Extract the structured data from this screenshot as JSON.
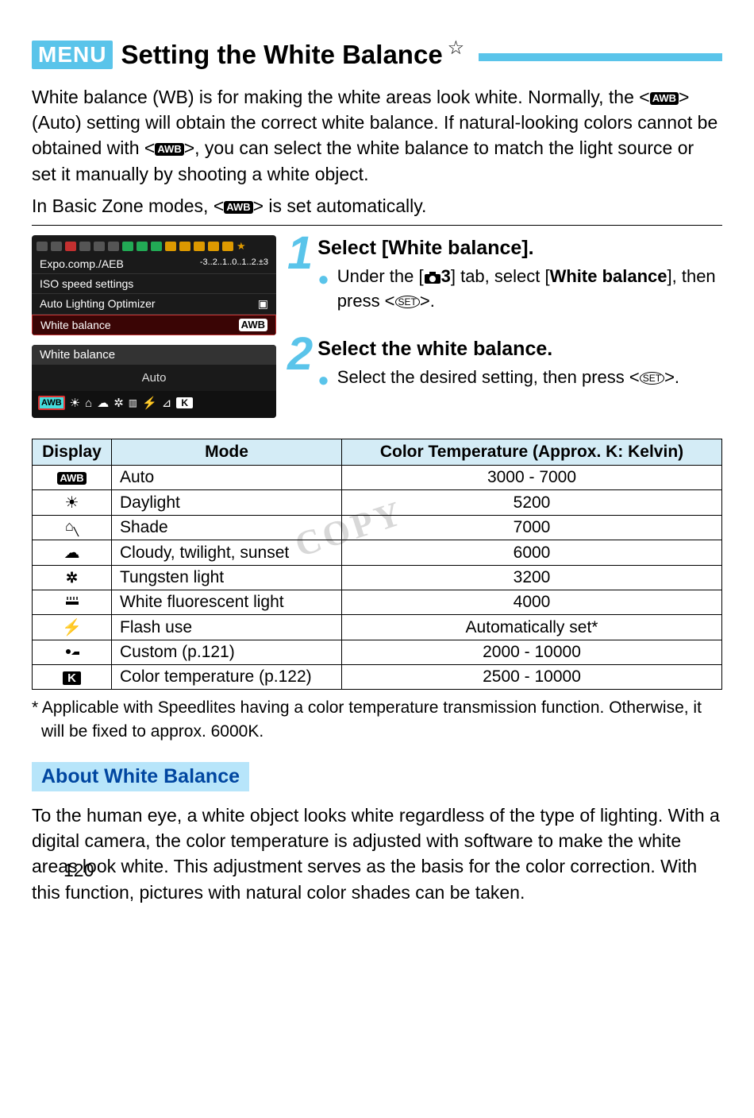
{
  "colors": {
    "accent_cyan": "#5ac4ea",
    "section_bg": "#b7e5fa",
    "section_text": "#0046a0",
    "table_header_bg": "#d4ecf6",
    "screen_bg": "#1a1a1a",
    "screen_highlight_border": "#c43030"
  },
  "header": {
    "menu_badge": "MENU",
    "title": "Setting the White Balance",
    "star": "☆"
  },
  "intro": {
    "p1_a": "White balance (WB) is for making the white areas look white. Normally, the <",
    "p1_b": "> (Auto) setting will obtain the correct white balance. If natural-looking colors cannot be obtained with <",
    "p1_c": ">, you can select the white balance to match the light source or set it manually by shooting a white object.",
    "p2_a": "In Basic Zone modes, <",
    "p2_b": "> is set automatically.",
    "awb_label": "AWB"
  },
  "screenshots": {
    "screen1": {
      "row1_label": "Expo.comp./AEB",
      "row1_value": "-3..2..1..0..1..2.±3",
      "row2": "ISO speed settings",
      "row3": "Auto Lighting Optimizer",
      "row4_label": "White balance",
      "row4_value": "AWB"
    },
    "screen2": {
      "title": "White balance",
      "value": "Auto",
      "selected": "AWB",
      "icons": [
        "☀",
        "⌂",
        "☁",
        "✲",
        "▥",
        "⚡",
        "⊿",
        "K"
      ]
    }
  },
  "steps": [
    {
      "num": "1",
      "title": "Select [White balance].",
      "sub_a": "Under the [",
      "sub_tab": "3",
      "sub_b": "] tab, select [",
      "sub_bold": "White balance",
      "sub_c": "], then press <",
      "sub_d": ">."
    },
    {
      "num": "2",
      "title": "Select the white balance.",
      "sub_a": "Select the desired setting, then press <",
      "sub_b": ">."
    }
  ],
  "table": {
    "headers": [
      "Display",
      "Mode",
      "Color Temperature (Approx. K: Kelvin)"
    ],
    "rows": [
      {
        "icon_label": "AWB",
        "icon_type": "awb",
        "mode": "Auto",
        "temp": "3000 - 7000"
      },
      {
        "icon_label": "☀",
        "icon_type": "glyph",
        "mode": "Daylight",
        "temp": "5200"
      },
      {
        "icon_label": "⌂",
        "icon_type": "shade",
        "mode": "Shade",
        "temp": "7000"
      },
      {
        "icon_label": "☁",
        "icon_type": "glyph",
        "mode": "Cloudy, twilight, sunset",
        "temp": "6000"
      },
      {
        "icon_label": "✲",
        "icon_type": "tungsten",
        "mode": "Tungsten light",
        "temp": "3200"
      },
      {
        "icon_label": "▥",
        "icon_type": "fluorescent",
        "mode": "White fluorescent light",
        "temp": "4000"
      },
      {
        "icon_label": "⚡",
        "icon_type": "glyph",
        "mode": "Flash use",
        "temp": "Automatically set*"
      },
      {
        "icon_label": "⊿",
        "icon_type": "custom",
        "mode": "Custom (p.121)",
        "temp": "2000 - 10000"
      },
      {
        "icon_label": "K",
        "icon_type": "k",
        "mode": "Color temperature (p.122)",
        "temp": "2500 - 10000"
      }
    ]
  },
  "footnote": "* Applicable with Speedlites having a color temperature transmission function. Otherwise, it will be fixed to approx. 6000K.",
  "section": {
    "title": "About White Balance",
    "body": "To the human eye, a white object looks white regardless of the type of lighting. With a digital camera, the color temperature is adjusted with software to make the white areas look white. This adjustment serves as the basis for the color correction. With this function, pictures with natural color shades can be taken."
  },
  "set_label": "SET",
  "watermark": "COPY",
  "page_number": "120"
}
